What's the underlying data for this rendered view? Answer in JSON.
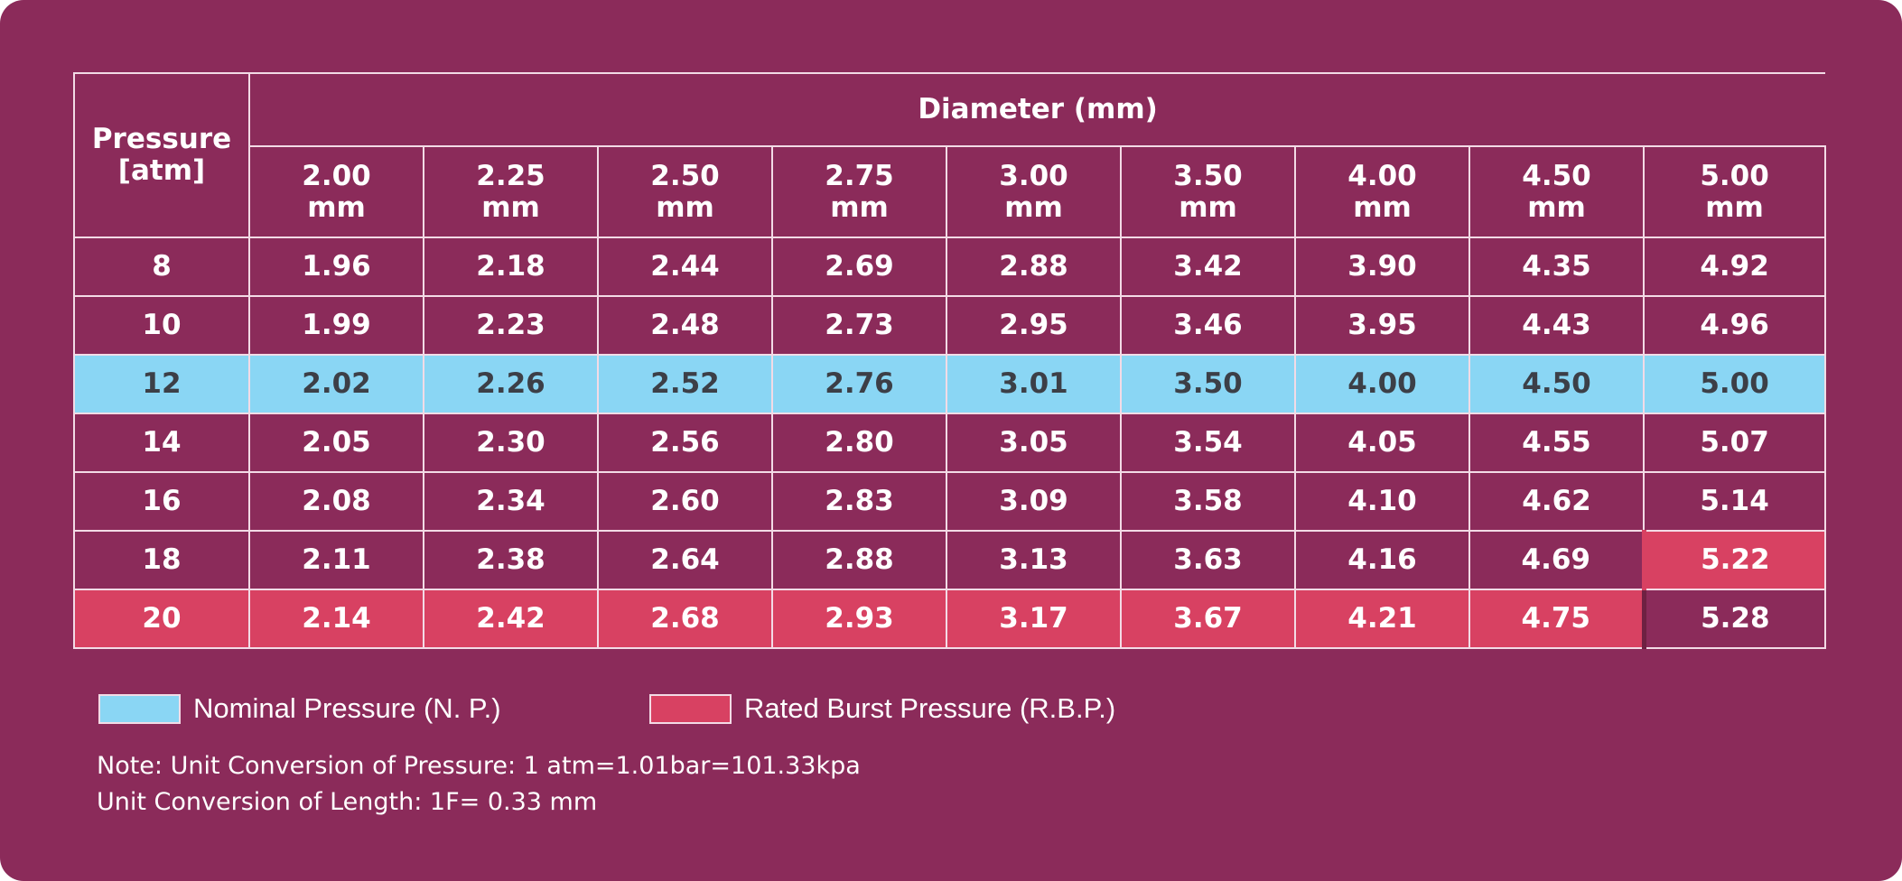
{
  "table": {
    "row_header": [
      "Pressure",
      "[atm]"
    ],
    "column_group_label": "Diameter (mm)",
    "columns": [
      [
        "2.00",
        "mm"
      ],
      [
        "2.25",
        "mm"
      ],
      [
        "2.50",
        "mm"
      ],
      [
        "2.75",
        "mm"
      ],
      [
        "3.00",
        "mm"
      ],
      [
        "3.50",
        "mm"
      ],
      [
        "4.00",
        "mm"
      ],
      [
        "4.50",
        "mm"
      ],
      [
        "5.00",
        "mm"
      ]
    ],
    "rows": [
      {
        "pressure": "8",
        "values": [
          "1.96",
          "2.18",
          "2.44",
          "2.69",
          "2.88",
          "3.42",
          "3.90",
          "4.35",
          "4.92"
        ]
      },
      {
        "pressure": "10",
        "values": [
          "1.99",
          "2.23",
          "2.48",
          "2.73",
          "2.95",
          "3.46",
          "3.95",
          "4.43",
          "4.96"
        ]
      },
      {
        "pressure": "12",
        "values": [
          "2.02",
          "2.26",
          "2.52",
          "2.76",
          "3.01",
          "3.50",
          "4.00",
          "4.50",
          "5.00"
        ]
      },
      {
        "pressure": "14",
        "values": [
          "2.05",
          "2.30",
          "2.56",
          "2.80",
          "3.05",
          "3.54",
          "4.05",
          "4.55",
          "5.07"
        ]
      },
      {
        "pressure": "16",
        "values": [
          "2.08",
          "2.34",
          "2.60",
          "2.83",
          "3.09",
          "3.58",
          "4.10",
          "4.62",
          "5.14"
        ]
      },
      {
        "pressure": "18",
        "values": [
          "2.11",
          "2.38",
          "2.64",
          "2.88",
          "3.13",
          "3.63",
          "4.16",
          "4.69",
          "5.22"
        ]
      },
      {
        "pressure": "20",
        "values": [
          "2.14",
          "2.42",
          "2.68",
          "2.93",
          "3.17",
          "3.67",
          "4.21",
          "4.75",
          "5.28"
        ]
      }
    ]
  },
  "legend": {
    "nominal": {
      "label": "Nominal Pressure (N. P.)",
      "color": "#8ad6f4"
    },
    "rated_burst": {
      "label": "Rated Burst Pressure (R.B.P.)",
      "color": "#d84162"
    }
  },
  "notes": [
    "Note: Unit Conversion of Pressure: 1 atm=1.01bar=101.33kpa",
    "Unit Conversion of Length: 1F= 0.33 mm"
  ],
  "colors": {
    "background": "#8b2b5a",
    "grid_line": "#f3dbe6",
    "text": "#ffffff",
    "nominal_text": "#3c3f47"
  }
}
